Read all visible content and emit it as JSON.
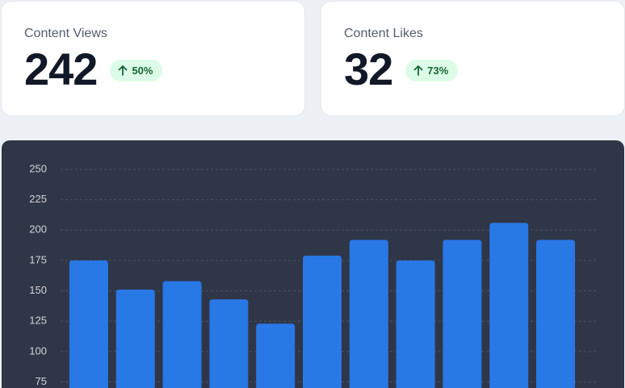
{
  "cards": [
    {
      "label": "Content Views",
      "value": 242,
      "change": "50%"
    },
    {
      "label": "Content Likes",
      "value": 32,
      "change": "73%"
    }
  ],
  "chart_data": {
    "type": "bar",
    "categories": [
      null,
      null,
      null,
      null,
      null,
      null,
      null,
      null,
      null,
      null,
      null
    ],
    "values": [
      175,
      151,
      158,
      143,
      123,
      179,
      192,
      175,
      192,
      206,
      192
    ],
    "color": "#2878e6",
    "ylim": [
      70,
      250
    ],
    "yticks": [
      75,
      100,
      125,
      150,
      175,
      200,
      225,
      250
    ],
    "grid": true
  }
}
